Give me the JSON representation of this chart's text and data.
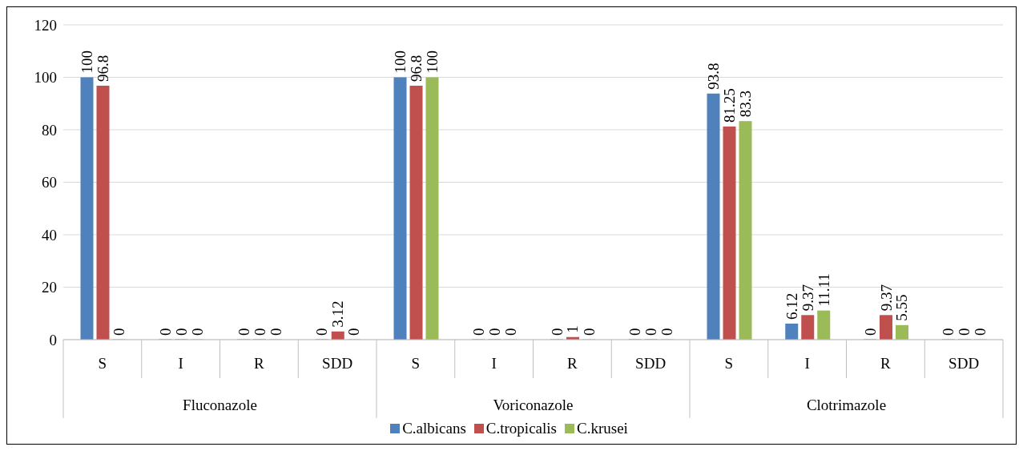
{
  "chart_data": {
    "type": "bar",
    "categories": [
      "S",
      "I",
      "R",
      "SDD",
      "S",
      "I",
      "R",
      "SDD",
      "S",
      "I",
      "R",
      "SDD"
    ],
    "annotations": [
      "Fluconazole",
      "Voriconazole",
      "Clotrimazole"
    ],
    "series": [
      {
        "name": "C.albicans",
        "color": "#4f81bd",
        "values": [
          100,
          0,
          0,
          0,
          100,
          0,
          0,
          0,
          93.8,
          6.12,
          0,
          0
        ]
      },
      {
        "name": "C.tropicalis",
        "color": "#c0504d",
        "values": [
          96.8,
          0,
          0,
          3.12,
          96.8,
          0,
          1,
          0,
          81.25,
          9.37,
          9.37,
          0
        ]
      },
      {
        "name": "C.krusei",
        "color": "#9bbb59",
        "values": [
          0,
          0,
          0,
          0,
          100,
          0,
          0,
          0,
          83.3,
          11.11,
          5.55,
          0
        ]
      }
    ],
    "ylim": [
      0,
      120
    ],
    "yticks": [
      0,
      20,
      40,
      60,
      80,
      100,
      120
    ],
    "grid": "y",
    "legend": "bottom",
    "data_labels": true
  }
}
